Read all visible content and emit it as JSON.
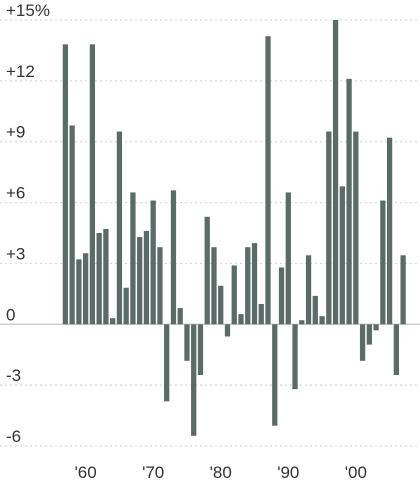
{
  "chart_data": {
    "type": "bar",
    "title": "",
    "xlabel": "",
    "ylabel": "",
    "ylim": [
      -6,
      15
    ],
    "y_ticks": [
      {
        "value": 15,
        "label": "+15%"
      },
      {
        "value": 12,
        "label": "+12"
      },
      {
        "value": 9,
        "label": "+9"
      },
      {
        "value": 6,
        "label": "+6"
      },
      {
        "value": 3,
        "label": "+3"
      },
      {
        "value": 0,
        "label": "0"
      },
      {
        "value": -3,
        "label": "-3"
      },
      {
        "value": -6,
        "label": "-6"
      }
    ],
    "x_ticks": [
      {
        "value": 1960,
        "label": "'60"
      },
      {
        "value": 1970,
        "label": "'70"
      },
      {
        "value": 1980,
        "label": "'80"
      },
      {
        "value": 1990,
        "label": "'90"
      },
      {
        "value": 2000,
        "label": "'00"
      }
    ],
    "xlim": [
      1956.5,
      2009.5
    ],
    "grid": true,
    "bar_color": "#5a6b68",
    "grid_color": "#d9d9d9",
    "x": [
      1957,
      1958,
      1959,
      1960,
      1961,
      1962,
      1963,
      1964,
      1965,
      1966,
      1967,
      1968,
      1969,
      1970,
      1971,
      1972,
      1973,
      1974,
      1975,
      1976,
      1977,
      1978,
      1979,
      1980,
      1981,
      1982,
      1983,
      1984,
      1985,
      1986,
      1987,
      1988,
      1989,
      1990,
      1991,
      1992,
      1993,
      1994,
      1995,
      1996,
      1997,
      1998,
      1999,
      2000,
      2001,
      2002,
      2003,
      2004,
      2005,
      2006,
      2007
    ],
    "values": [
      13.8,
      9.8,
      3.2,
      3.5,
      13.8,
      4.5,
      4.7,
      0.3,
      9.5,
      1.8,
      6.5,
      4.3,
      4.6,
      6.1,
      3.8,
      -3.8,
      6.6,
      0.8,
      -1.8,
      -5.5,
      -2.5,
      5.3,
      3.8,
      1.9,
      -0.6,
      2.9,
      0.5,
      3.8,
      4.0,
      1.0,
      14.2,
      -5.0,
      2.8,
      6.5,
      -3.2,
      0.2,
      3.4,
      1.4,
      0.4,
      9.5,
      15.0,
      6.8,
      12.1,
      9.5,
      -1.8,
      -1.0,
      -0.3,
      6.1,
      9.2,
      -2.5,
      3.4
    ]
  }
}
